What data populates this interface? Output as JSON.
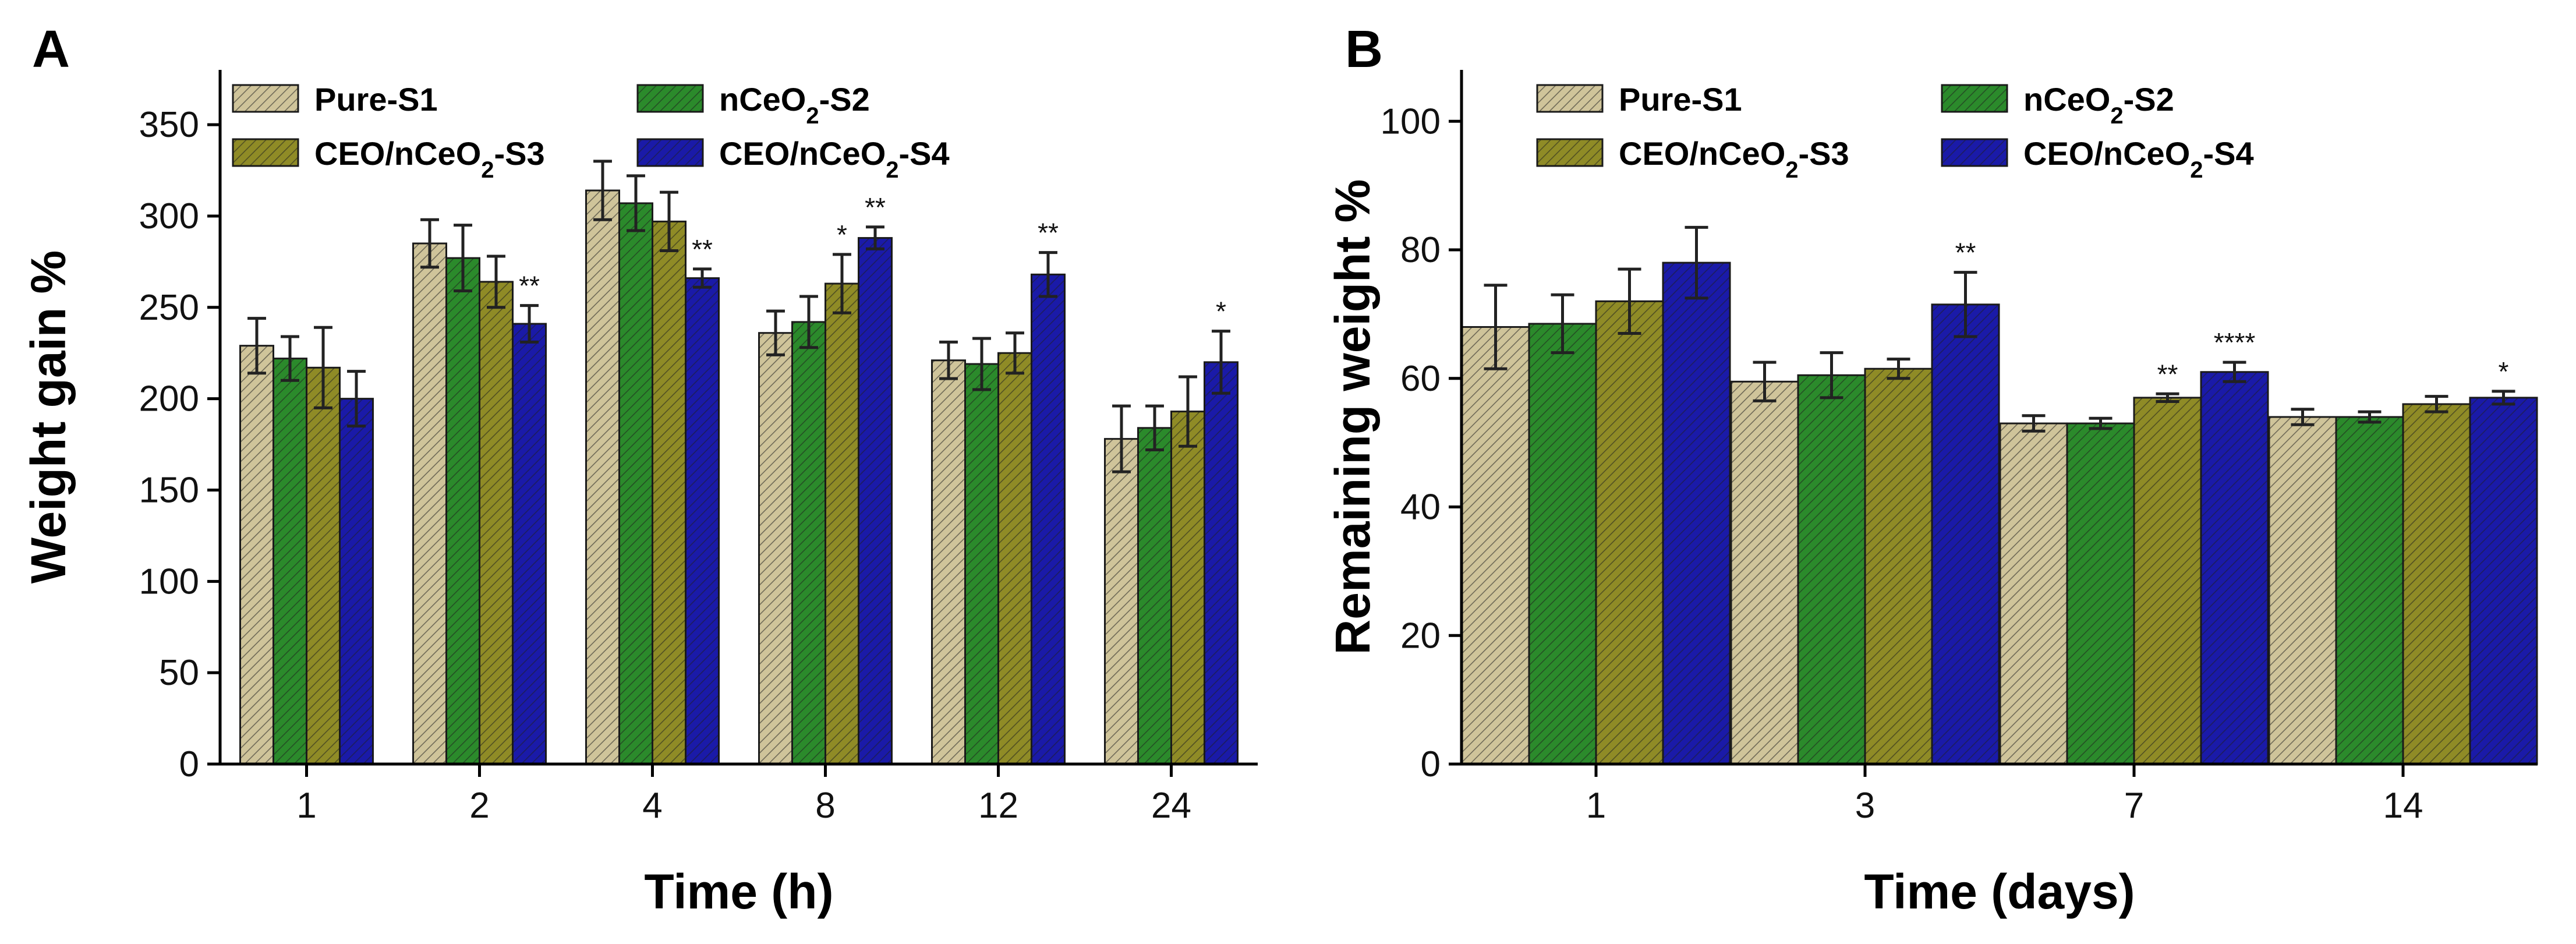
{
  "colors": {
    "Pure-S1": "#cfc49a",
    "nCeO2-S2": "#2b8a2b",
    "CEO/nCeO2-S3": "#8f8b26",
    "CEO/nCeO2-S4": "#1a1aa8"
  },
  "chart_data": [
    {
      "type": "bar",
      "panel_label": "A",
      "xlabel": "Time (h)",
      "ylabel": "Weight gain %",
      "ylim": [
        0,
        380
      ],
      "yticks": [
        0,
        50,
        100,
        150,
        200,
        250,
        300,
        350
      ],
      "categories": [
        "1",
        "2",
        "4",
        "8",
        "12",
        "24"
      ],
      "legend_placement": "top",
      "series": [
        {
          "name": "Pure-S1",
          "name_parts": [
            "Pure-S1"
          ],
          "values": [
            229,
            285,
            314,
            236,
            221,
            178
          ],
          "errors": [
            15,
            13,
            16,
            12,
            10,
            18
          ]
        },
        {
          "name": "nCeO2-S2",
          "name_parts": [
            "nCeO",
            "2",
            "-S2"
          ],
          "values": [
            222,
            277,
            307,
            242,
            219,
            184
          ],
          "errors": [
            12,
            18,
            15,
            14,
            14,
            12
          ]
        },
        {
          "name": "CEO/nCeO2-S3",
          "name_parts": [
            "CEO/nCeO",
            "2",
            "-S3"
          ],
          "values": [
            217,
            264,
            297,
            263,
            225,
            193
          ],
          "errors": [
            22,
            14,
            16,
            16,
            11,
            19
          ]
        },
        {
          "name": "CEO/nCeO2-S4",
          "name_parts": [
            "CEO/nCeO",
            "2",
            "-S4"
          ],
          "values": [
            200,
            241,
            266,
            288,
            268,
            220
          ],
          "errors": [
            15,
            10,
            5,
            6,
            12,
            17
          ]
        }
      ],
      "annotations": [
        {
          "category": "2",
          "series": "CEO/nCeO2-S4",
          "text": "**"
        },
        {
          "category": "4",
          "series": "CEO/nCeO2-S4",
          "text": "**"
        },
        {
          "category": "8",
          "series": "CEO/nCeO2-S3",
          "text": "*"
        },
        {
          "category": "8",
          "series": "CEO/nCeO2-S4",
          "text": "**"
        },
        {
          "category": "12",
          "series": "CEO/nCeO2-S4",
          "text": "**"
        },
        {
          "category": "24",
          "series": "CEO/nCeO2-S4",
          "text": "*"
        }
      ]
    },
    {
      "type": "bar",
      "panel_label": "B",
      "xlabel": "Time (days)",
      "ylabel": "Remaining weight %",
      "ylim": [
        0,
        108
      ],
      "yticks": [
        0,
        20,
        40,
        60,
        80,
        100
      ],
      "categories": [
        "1",
        "3",
        "7",
        "14"
      ],
      "legend_placement": "top",
      "series": [
        {
          "name": "Pure-S1",
          "name_parts": [
            "Pure-S1"
          ],
          "values": [
            68,
            59.5,
            53,
            54
          ],
          "errors": [
            6.5,
            3,
            1.2,
            1.2
          ]
        },
        {
          "name": "nCeO2-S2",
          "name_parts": [
            "nCeO",
            "2",
            "-S2"
          ],
          "values": [
            68.5,
            60.5,
            53,
            54
          ],
          "errors": [
            4.5,
            3.5,
            0.8,
            0.8
          ]
        },
        {
          "name": "CEO/nCeO2-S3",
          "name_parts": [
            "CEO/nCeO",
            "2",
            "-S3"
          ],
          "values": [
            72,
            61.5,
            57,
            56
          ],
          "errors": [
            5,
            1.5,
            0.6,
            1.2
          ]
        },
        {
          "name": "CEO/nCeO2-S4",
          "name_parts": [
            "CEO/nCeO",
            "2",
            "-S4"
          ],
          "values": [
            78,
            71.5,
            61,
            57
          ],
          "errors": [
            5.5,
            5,
            1.5,
            1
          ]
        }
      ],
      "annotations": [
        {
          "category": "3",
          "series": "CEO/nCeO2-S4",
          "text": "**"
        },
        {
          "category": "7",
          "series": "CEO/nCeO2-S3",
          "text": "**"
        },
        {
          "category": "7",
          "series": "CEO/nCeO2-S4",
          "text": "****"
        },
        {
          "category": "14",
          "series": "CEO/nCeO2-S4",
          "text": "*"
        }
      ]
    }
  ]
}
